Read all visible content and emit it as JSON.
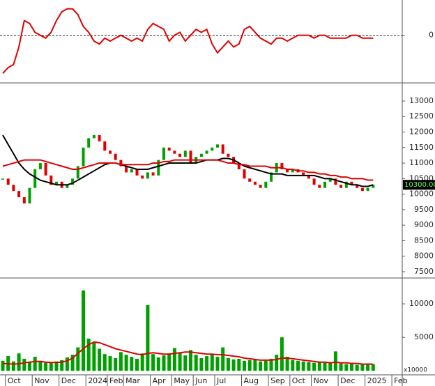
{
  "chart_data": [
    {
      "type": "line",
      "ylim": [
        -1.6,
        1.2
      ],
      "yticks": [
        0
      ],
      "series": [
        {
          "color": "#e00000",
          "values": [
            -1.3,
            -1.1,
            -1.0,
            -0.4,
            0.5,
            0.4,
            0.1,
            0.0,
            -0.1,
            0.1,
            0.5,
            0.8,
            0.9,
            0.9,
            0.7,
            0.3,
            0.1,
            -0.2,
            -0.3,
            -0.1,
            -0.2,
            -0.1,
            0.0,
            -0.1,
            -0.2,
            -0.1,
            -0.2,
            0.2,
            0.4,
            0.3,
            0.2,
            -0.2,
            0.0,
            0.1,
            -0.2,
            0.0,
            0.2,
            0.1,
            0.2,
            -0.3,
            -0.6,
            -0.4,
            -0.2,
            -0.4,
            -0.3,
            0.2,
            0.3,
            0.1,
            -0.1,
            -0.2,
            -0.3,
            -0.1,
            -0.1,
            -0.2,
            -0.1,
            0.0,
            0.0,
            0.0,
            -0.1,
            0.0,
            0.0,
            -0.1,
            -0.1,
            -0.1,
            -0.1,
            0.0,
            0.0,
            -0.1,
            -0.1,
            -0.1,
            null,
            null,
            null,
            null
          ]
        }
      ]
    },
    {
      "type": "candlestick",
      "ylim": [
        7320,
        13560
      ],
      "yticks": [
        7500,
        8000,
        8500,
        9000,
        9500,
        10000,
        10500,
        11000,
        11500,
        12000,
        12500,
        13000
      ],
      "up_color": "#00a000",
      "down_color": "#e00000",
      "values": [
        10500,
        10300,
        10100,
        9900,
        9700,
        10200,
        10800,
        11000,
        10600,
        10300,
        10400,
        10200,
        10300,
        10500,
        10900,
        11500,
        11800,
        11900,
        11700,
        11400,
        11300,
        11100,
        10900,
        10700,
        10800,
        10600,
        10500,
        10700,
        10600,
        11100,
        11500,
        11400,
        11300,
        11200,
        11400,
        11000,
        11200,
        11300,
        11400,
        11500,
        11600,
        11300,
        11200,
        11000,
        10800,
        10500,
        10400,
        10300,
        10200,
        10400,
        10700,
        11000,
        10800,
        10700,
        10800,
        10700,
        10600,
        10500,
        10300,
        10200,
        10400,
        10500,
        10300,
        10200,
        10400,
        10300,
        10200,
        10100,
        10200,
        10300,
        null,
        null,
        null,
        null
      ],
      "series": [
        {
          "color": "#000000",
          "values": [
            11900,
            11600,
            11300,
            11000,
            10800,
            10650,
            10550,
            10450,
            10400,
            10350,
            10300,
            10300,
            10300,
            10350,
            10450,
            10550,
            10650,
            10750,
            10850,
            10950,
            11000,
            11000,
            10950,
            10900,
            10850,
            10800,
            10800,
            10800,
            10850,
            10900,
            10950,
            11000,
            11000,
            11000,
            11000,
            11000,
            11000,
            11050,
            11100,
            11100,
            11100,
            11150,
            11150,
            11100,
            11000,
            10900,
            10850,
            10800,
            10750,
            10700,
            10650,
            10650,
            10650,
            10600,
            10600,
            10600,
            10600,
            10600,
            10600,
            10550,
            10500,
            10500,
            10450,
            10400,
            10350,
            10300,
            10300,
            10250,
            10250,
            10300,
            null,
            null,
            null,
            null
          ]
        },
        {
          "color": "#e00000",
          "values": [
            10900,
            10950,
            11000,
            11050,
            11100,
            11100,
            11100,
            11100,
            11050,
            11000,
            10950,
            10900,
            10850,
            10800,
            10800,
            10850,
            10900,
            10950,
            11000,
            11000,
            11000,
            11000,
            10950,
            10950,
            10950,
            10950,
            10950,
            10950,
            11000,
            11000,
            11050,
            11050,
            11100,
            11100,
            11100,
            11100,
            11100,
            11100,
            11100,
            11100,
            11100,
            11050,
            11000,
            11000,
            10950,
            10950,
            10900,
            10900,
            10900,
            10900,
            10850,
            10850,
            10850,
            10800,
            10800,
            10750,
            10750,
            10700,
            10700,
            10650,
            10650,
            10600,
            10600,
            10550,
            10550,
            10500,
            10500,
            10500,
            10450,
            10450,
            null,
            null,
            null,
            null
          ]
        }
      ],
      "last_price_label": {
        "value": 10300,
        "label": "10300.00"
      }
    },
    {
      "type": "bar",
      "ylim": [
        -600,
        13750
      ],
      "yticks": [
        5000,
        10000
      ],
      "unit_label": "x10000",
      "color": "#00a000",
      "categories": [
        null,
        "Oct",
        null,
        null,
        null,
        null,
        "Nov",
        null,
        null,
        null,
        null,
        "Dec",
        null,
        null,
        null,
        null,
        "2024",
        null,
        null,
        null,
        "Feb",
        null,
        null,
        "Mar",
        null,
        null,
        null,
        null,
        "Apr",
        null,
        null,
        null,
        "May",
        null,
        null,
        null,
        "Jun",
        null,
        null,
        null,
        "Jul",
        null,
        null,
        null,
        null,
        "Aug",
        null,
        null,
        null,
        null,
        "Sep",
        null,
        null,
        null,
        "Oct",
        null,
        null,
        null,
        "Nov",
        null,
        null,
        null,
        null,
        "Dec",
        null,
        null,
        null,
        null,
        "2025",
        null,
        null,
        null,
        null,
        "Feb"
      ],
      "values": [
        1500,
        2200,
        1400,
        2600,
        1800,
        1300,
        2100,
        1500,
        1200,
        1300,
        1400,
        1600,
        2000,
        2400,
        3500,
        12000,
        4800,
        4200,
        3300,
        2500,
        2200,
        1900,
        2800,
        2400,
        2100,
        1800,
        2600,
        9800,
        2500,
        2000,
        2300,
        2600,
        3400,
        2700,
        2300,
        3100,
        2400,
        1900,
        2200,
        2500,
        2100,
        3500,
        1900,
        1700,
        1800,
        1500,
        1600,
        1700,
        1400,
        1500,
        1800,
        2400,
        5000,
        2100,
        1600,
        1500,
        1400,
        1300,
        1200,
        1300,
        1200,
        1300,
        2900,
        1100,
        1000,
        1200,
        900,
        1000,
        1100,
        1000,
        null,
        null,
        null,
        null
      ],
      "series": [
        {
          "color": "#e00000",
          "values": [
            1100,
            1050,
            1000,
            1050,
            1200,
            1300,
            1400,
            1400,
            1300,
            1250,
            1250,
            1300,
            1500,
            1900,
            2600,
            3300,
            3900,
            4300,
            4200,
            3900,
            3600,
            3300,
            3100,
            2900,
            2700,
            2500,
            2400,
            2600,
            2700,
            2600,
            2500,
            2500,
            2600,
            2700,
            2800,
            2800,
            2700,
            2600,
            2500,
            2500,
            2400,
            2400,
            2300,
            2200,
            2100,
            1900,
            1800,
            1700,
            1600,
            1600,
            1600,
            1700,
            1900,
            1900,
            1800,
            1700,
            1600,
            1500,
            1400,
            1300,
            1300,
            1200,
            1300,
            1200,
            1200,
            1100,
            1100,
            1000,
            1000,
            1000,
            null,
            null,
            null,
            null
          ]
        }
      ]
    }
  ]
}
